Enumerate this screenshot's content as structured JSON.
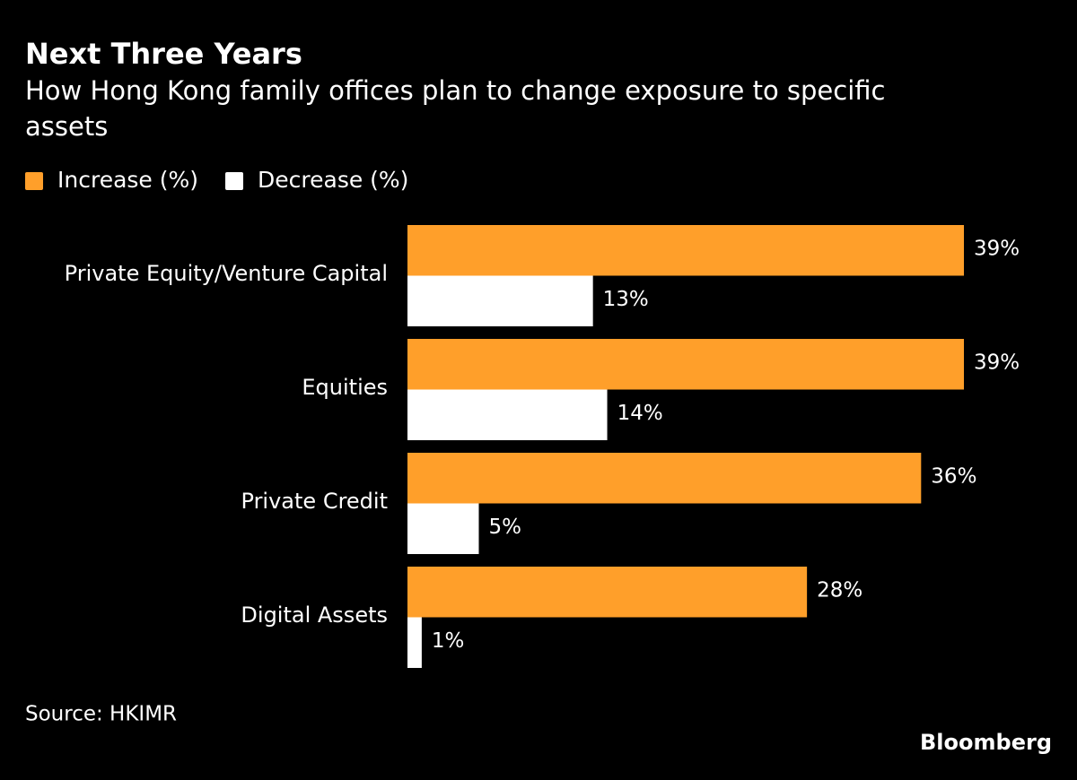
{
  "chart_data": {
    "type": "bar",
    "orientation": "horizontal",
    "title": "Next Three Years",
    "subtitle": "How Hong Kong family offices plan to change exposure to specific assets",
    "categories": [
      "Private Equity/Venture Capital",
      "Equities",
      "Private Credit",
      "Digital Assets"
    ],
    "series": [
      {
        "name": "Increase (%)",
        "color": "#ff9f2a",
        "values": [
          39,
          39,
          36,
          28
        ],
        "value_labels": [
          "39%",
          "39%",
          "36%",
          "28%"
        ]
      },
      {
        "name": "Decrease (%)",
        "color": "#ffffff",
        "values": [
          13,
          14,
          5,
          1
        ],
        "value_labels": [
          "13%",
          "14%",
          "5%",
          "1%"
        ]
      }
    ],
    "source": "Source: HKIMR",
    "brand": "Bloomberg"
  }
}
